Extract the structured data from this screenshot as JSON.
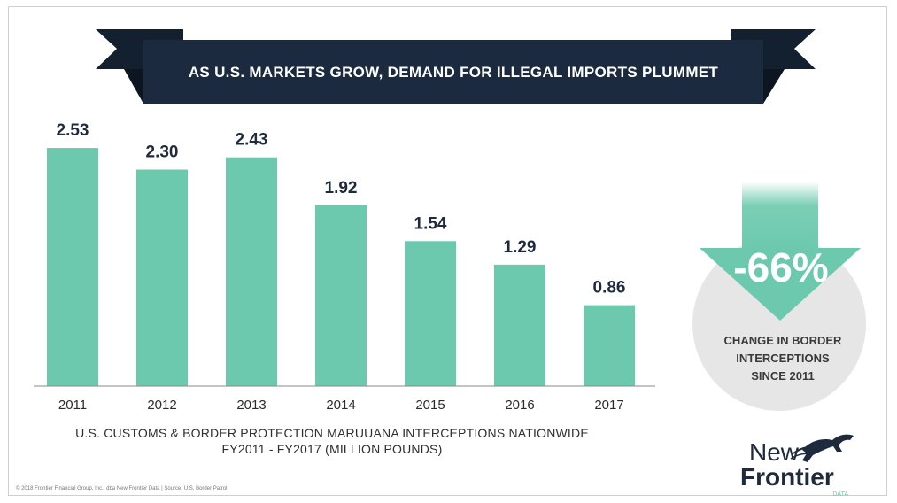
{
  "chart_data": {
    "type": "bar",
    "title": "AS U.S. MARKETS GROW, DEMAND FOR ILLEGAL IMPORTS PLUMMET",
    "categories": [
      "2011",
      "2012",
      "2013",
      "2014",
      "2015",
      "2016",
      "2017"
    ],
    "values": [
      2.53,
      2.3,
      2.43,
      1.92,
      1.54,
      1.29,
      0.86
    ],
    "value_labels": [
      "2.53",
      "2.30",
      "2.43",
      "1.92",
      "1.54",
      "1.29",
      "0.86"
    ],
    "caption_line1": "U.S. CUSTOMS & BORDER PROTECTION MARUUANA INTERCEPTIONS NATIONWIDE",
    "caption_line2": "FY2011 - FY2017 (MILLION POUNDS)",
    "ylim": [
      0,
      2.6
    ],
    "grid": false,
    "bar_color": "#6cc9ad"
  },
  "callout": {
    "percent": "-66%",
    "lines": [
      "CHANGE IN BORDER",
      "INTERCEPTIONS",
      "SINCE 2011"
    ]
  },
  "footer": {
    "note": "© 2018 Frontier Financial Group, Inc., dba New Frontier Data | Source: U.S. Border Patrol"
  },
  "logo": {
    "line1": "New",
    "line2": "Frontier",
    "line3": "DATA"
  },
  "colors": {
    "banner": "#1b2a3f",
    "banner_ribbon": "#13202f",
    "accent": "#6cc9ad",
    "circle": "#e6e6e6"
  }
}
